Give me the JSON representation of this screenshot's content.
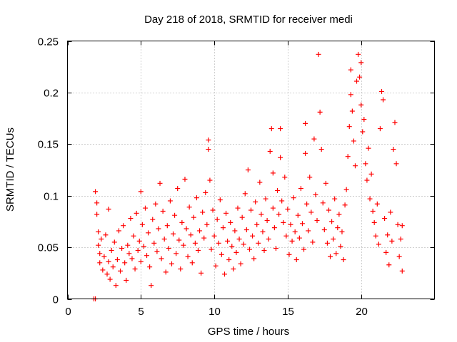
{
  "chart_data": {
    "type": "scatter",
    "title": "Day 218 of 2018, SRMTID for receiver medi",
    "xlabel": "GPS time / hours",
    "ylabel": "SRMTID / TECUs",
    "xlim": [
      0,
      25
    ],
    "ylim": [
      0,
      0.25
    ],
    "x_ticks": [
      0,
      5,
      10,
      15,
      20
    ],
    "x_tick_labels": [
      "0",
      "5",
      "10",
      "15",
      "20"
    ],
    "y_ticks": [
      0,
      0.05,
      0.1,
      0.15,
      0.2,
      0.25
    ],
    "y_tick_labels": [
      "0",
      "0.05",
      "0.1",
      "0.15",
      "0.2",
      "0.25"
    ],
    "grid": true,
    "marker": "+",
    "series_color": "#ff0000",
    "series": [
      {
        "name": "SRMTID",
        "points": [
          [
            1.8,
            0.0
          ],
          [
            1.9,
            0.0
          ],
          [
            1.9,
            0.104
          ],
          [
            2.0,
            0.093
          ],
          [
            2.0,
            0.082
          ],
          [
            2.1,
            0.065
          ],
          [
            2.1,
            0.052
          ],
          [
            2.2,
            0.044
          ],
          [
            2.2,
            0.035
          ],
          [
            2.3,
            0.058
          ],
          [
            2.4,
            0.028
          ],
          [
            2.5,
            0.041
          ],
          [
            2.6,
            0.062
          ],
          [
            2.7,
            0.024
          ],
          [
            2.8,
            0.087
          ],
          [
            2.8,
            0.036
          ],
          [
            2.9,
            0.019
          ],
          [
            3.0,
            0.047
          ],
          [
            3.1,
            0.031
          ],
          [
            3.2,
            0.055
          ],
          [
            3.3,
            0.013
          ],
          [
            3.4,
            0.038
          ],
          [
            3.5,
            0.066
          ],
          [
            3.6,
            0.027
          ],
          [
            3.7,
            0.049
          ],
          [
            3.8,
            0.071
          ],
          [
            3.9,
            0.035
          ],
          [
            4.0,
            0.018
          ],
          [
            4.1,
            0.052
          ],
          [
            4.2,
            0.044
          ],
          [
            4.3,
            0.078
          ],
          [
            4.4,
            0.039
          ],
          [
            4.5,
            0.061
          ],
          [
            4.6,
            0.029
          ],
          [
            4.7,
            0.083
          ],
          [
            4.8,
            0.047
          ],
          [
            4.9,
            0.056
          ],
          [
            5.0,
            0.104
          ],
          [
            5.0,
            0.036
          ],
          [
            5.1,
            0.072
          ],
          [
            5.2,
            0.051
          ],
          [
            5.3,
            0.088
          ],
          [
            5.4,
            0.042
          ],
          [
            5.5,
            0.064
          ],
          [
            5.6,
            0.031
          ],
          [
            5.7,
            0.013
          ],
          [
            5.8,
            0.077
          ],
          [
            5.9,
            0.054
          ],
          [
            6.0,
            0.092
          ],
          [
            6.1,
            0.046
          ],
          [
            6.2,
            0.068
          ],
          [
            6.3,
            0.112
          ],
          [
            6.4,
            0.039
          ],
          [
            6.5,
            0.085
          ],
          [
            6.6,
            0.058
          ],
          [
            6.7,
            0.026
          ],
          [
            6.8,
            0.071
          ],
          [
            6.9,
            0.049
          ],
          [
            7.0,
            0.095
          ],
          [
            7.1,
            0.034
          ],
          [
            7.2,
            0.063
          ],
          [
            7.3,
            0.081
          ],
          [
            7.4,
            0.044
          ],
          [
            7.5,
            0.107
          ],
          [
            7.6,
            0.057
          ],
          [
            7.7,
            0.029
          ],
          [
            7.8,
            0.074
          ],
          [
            7.9,
            0.052
          ],
          [
            8.0,
            0.116
          ],
          [
            8.1,
            0.068
          ],
          [
            8.2,
            0.041
          ],
          [
            8.3,
            0.089
          ],
          [
            8.4,
            0.062
          ],
          [
            8.5,
            0.035
          ],
          [
            8.6,
            0.079
          ],
          [
            8.7,
            0.054
          ],
          [
            8.8,
            0.098
          ],
          [
            8.9,
            0.047
          ],
          [
            9.0,
            0.066
          ],
          [
            9.1,
            0.025
          ],
          [
            9.2,
            0.084
          ],
          [
            9.3,
            0.059
          ],
          [
            9.4,
            0.103
          ],
          [
            9.5,
            0.072
          ],
          [
            9.6,
            0.154
          ],
          [
            9.6,
            0.145
          ],
          [
            9.7,
            0.115
          ],
          [
            9.8,
            0.048
          ],
          [
            9.9,
            0.086
          ],
          [
            10.0,
            0.061
          ],
          [
            10.1,
            0.032
          ],
          [
            10.2,
            0.077
          ],
          [
            10.3,
            0.054
          ],
          [
            10.4,
            0.096
          ],
          [
            10.5,
            0.043
          ],
          [
            10.6,
            0.069
          ],
          [
            10.7,
            0.024
          ],
          [
            10.8,
            0.083
          ],
          [
            10.9,
            0.056
          ],
          [
            11.0,
            0.038
          ],
          [
            11.1,
            0.074
          ],
          [
            11.2,
            0.051
          ],
          [
            11.3,
            0.029
          ],
          [
            11.4,
            0.066
          ],
          [
            11.5,
            0.045
          ],
          [
            11.6,
            0.088
          ],
          [
            11.7,
            0.058
          ],
          [
            11.8,
            0.034
          ],
          [
            11.9,
            0.079
          ],
          [
            12.0,
            0.053
          ],
          [
            12.1,
            0.102
          ],
          [
            12.2,
            0.067
          ],
          [
            12.3,
            0.125
          ],
          [
            12.4,
            0.048
          ],
          [
            12.5,
            0.086
          ],
          [
            12.6,
            0.061
          ],
          [
            12.7,
            0.039
          ],
          [
            12.8,
            0.094
          ],
          [
            12.9,
            0.072
          ],
          [
            13.0,
            0.054
          ],
          [
            13.1,
            0.113
          ],
          [
            13.2,
            0.082
          ],
          [
            13.3,
            0.065
          ],
          [
            13.4,
            0.047
          ],
          [
            13.5,
            0.097
          ],
          [
            13.6,
            0.076
          ],
          [
            13.7,
            0.058
          ],
          [
            13.8,
            0.143
          ],
          [
            13.9,
            0.165
          ],
          [
            14.0,
            0.122
          ],
          [
            14.0,
            0.088
          ],
          [
            14.1,
            0.069
          ],
          [
            14.2,
            0.049
          ],
          [
            14.3,
            0.105
          ],
          [
            14.4,
            0.082
          ],
          [
            14.5,
            0.165
          ],
          [
            14.5,
            0.137
          ],
          [
            14.6,
            0.095
          ],
          [
            14.7,
            0.074
          ],
          [
            14.8,
            0.118
          ],
          [
            14.9,
            0.061
          ],
          [
            15.0,
            0.087
          ],
          [
            15.1,
            0.043
          ],
          [
            15.2,
            0.072
          ],
          [
            15.3,
            0.056
          ],
          [
            15.4,
            0.098
          ],
          [
            15.5,
            0.065
          ],
          [
            15.6,
            0.038
          ],
          [
            15.7,
            0.081
          ],
          [
            15.8,
            0.059
          ],
          [
            15.9,
            0.107
          ],
          [
            16.0,
            0.073
          ],
          [
            16.1,
            0.048
          ],
          [
            16.2,
            0.141
          ],
          [
            16.2,
            0.17
          ],
          [
            16.3,
            0.092
          ],
          [
            16.4,
            0.066
          ],
          [
            16.5,
            0.118
          ],
          [
            16.6,
            0.084
          ],
          [
            16.7,
            0.055
          ],
          [
            16.8,
            0.155
          ],
          [
            16.9,
            0.101
          ],
          [
            17.0,
            0.076
          ],
          [
            17.1,
            0.237
          ],
          [
            17.2,
            0.181
          ],
          [
            17.3,
            0.145
          ],
          [
            17.4,
            0.093
          ],
          [
            17.5,
            0.067
          ],
          [
            17.6,
            0.112
          ],
          [
            17.7,
            0.054
          ],
          [
            17.8,
            0.086
          ],
          [
            17.9,
            0.041
          ],
          [
            18.0,
            0.075
          ],
          [
            18.1,
            0.058
          ],
          [
            18.2,
            0.097
          ],
          [
            18.3,
            0.044
          ],
          [
            18.4,
            0.069
          ],
          [
            18.5,
            0.082
          ],
          [
            18.6,
            0.051
          ],
          [
            18.7,
            0.065
          ],
          [
            18.8,
            0.038
          ],
          [
            18.9,
            0.091
          ],
          [
            19.0,
            0.106
          ],
          [
            19.1,
            0.138
          ],
          [
            19.2,
            0.167
          ],
          [
            19.3,
            0.222
          ],
          [
            19.3,
            0.198
          ],
          [
            19.4,
            0.182
          ],
          [
            19.5,
            0.153
          ],
          [
            19.6,
            0.129
          ],
          [
            19.7,
            0.211
          ],
          [
            19.8,
            0.237
          ],
          [
            19.9,
            0.215
          ],
          [
            20.0,
            0.229
          ],
          [
            20.0,
            0.188
          ],
          [
            20.1,
            0.162
          ],
          [
            20.2,
            0.174
          ],
          [
            20.3,
            0.131
          ],
          [
            20.4,
            0.115
          ],
          [
            20.5,
            0.146
          ],
          [
            20.6,
            0.097
          ],
          [
            20.7,
            0.121
          ],
          [
            20.8,
            0.085
          ],
          [
            20.9,
            0.074
          ],
          [
            21.0,
            0.061
          ],
          [
            21.1,
            0.092
          ],
          [
            21.2,
            0.053
          ],
          [
            21.3,
            0.165
          ],
          [
            21.4,
            0.201
          ],
          [
            21.5,
            0.193
          ],
          [
            21.6,
            0.078
          ],
          [
            21.7,
            0.045
          ],
          [
            21.8,
            0.062
          ],
          [
            21.9,
            0.033
          ],
          [
            22.0,
            0.084
          ],
          [
            22.1,
            0.056
          ],
          [
            22.2,
            0.145
          ],
          [
            22.3,
            0.171
          ],
          [
            22.4,
            0.131
          ],
          [
            22.5,
            0.072
          ],
          [
            22.6,
            0.041
          ],
          [
            22.7,
            0.058
          ],
          [
            22.8,
            0.027
          ],
          [
            22.8,
            0.071
          ]
        ]
      }
    ]
  }
}
